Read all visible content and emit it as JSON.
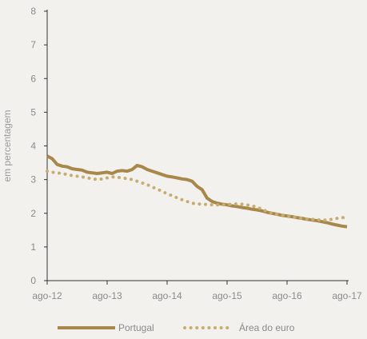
{
  "chart_data": {
    "type": "line",
    "ylabel": "em percentagem",
    "ylim": [
      0,
      8
    ],
    "yticks": [
      "0",
      "1",
      "2",
      "3",
      "4",
      "5",
      "6",
      "7",
      "8"
    ],
    "xticks": [
      "ago-12",
      "ago-13",
      "ago-14",
      "ago-15",
      "ago-16",
      "ago-17"
    ],
    "x_start": "2012-08",
    "x_end": "2017-08",
    "grid": false,
    "legend_position": "bottom",
    "colors": {
      "portugal": "#a8884a",
      "euro": "#c8ad73",
      "axis": "#333333"
    },
    "series": [
      {
        "name": "Portugal",
        "style": "solid",
        "values": [
          3.7,
          3.62,
          3.45,
          3.4,
          3.38,
          3.32,
          3.3,
          3.28,
          3.22,
          3.2,
          3.18,
          3.2,
          3.22,
          3.18,
          3.25,
          3.27,
          3.25,
          3.3,
          3.42,
          3.38,
          3.3,
          3.25,
          3.2,
          3.15,
          3.1,
          3.08,
          3.05,
          3.02,
          3.0,
          2.95,
          2.8,
          2.7,
          2.45,
          2.35,
          2.3,
          2.27,
          2.25,
          2.22,
          2.2,
          2.17,
          2.15,
          2.12,
          2.1,
          2.07,
          2.03,
          2.0,
          1.97,
          1.94,
          1.92,
          1.9,
          1.87,
          1.85,
          1.82,
          1.8,
          1.78,
          1.75,
          1.72,
          1.68,
          1.65,
          1.62,
          1.6
        ]
      },
      {
        "name": "Área do euro",
        "style": "dotted",
        "values": [
          3.25,
          3.22,
          3.2,
          3.18,
          3.15,
          3.12,
          3.1,
          3.08,
          3.05,
          3.03,
          3.0,
          3.02,
          3.05,
          3.08,
          3.07,
          3.05,
          3.03,
          3.0,
          2.95,
          2.9,
          2.85,
          2.78,
          2.72,
          2.65,
          2.58,
          2.52,
          2.46,
          2.4,
          2.35,
          2.3,
          2.28,
          2.27,
          2.26,
          2.25,
          2.25,
          2.25,
          2.26,
          2.27,
          2.28,
          2.27,
          2.25,
          2.22,
          2.18,
          2.12,
          2.05,
          2.0,
          1.97,
          1.95,
          1.93,
          1.9,
          1.87,
          1.85,
          1.83,
          1.82,
          1.81,
          1.8,
          1.8,
          1.82,
          1.85,
          1.87,
          1.88
        ]
      }
    ]
  }
}
